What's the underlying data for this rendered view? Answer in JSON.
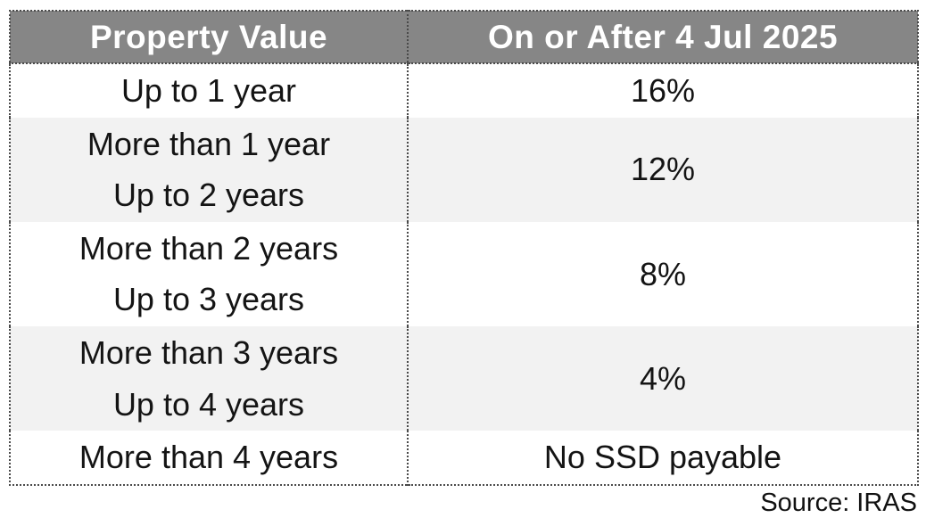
{
  "chart_data": {
    "type": "table",
    "columns": [
      "Property Value",
      "On or After 4 Jul 2025"
    ],
    "rows": [
      {
        "period": "Up to 1 year",
        "rate": "16%"
      },
      {
        "period": "More than 1 year\nUp to 2 years",
        "rate": "12%"
      },
      {
        "period": "More than 2 years\nUp to 3 years",
        "rate": "8%"
      },
      {
        "period": "More than 3 years\nUp to 4 years",
        "rate": "4%"
      },
      {
        "period": "More than 4 years",
        "rate": "No SSD payable"
      }
    ],
    "source_note": "Source: IRAS",
    "legend_position": "none",
    "grid": "off"
  },
  "colors": {
    "header_bg": "#868686",
    "header_text": "#ffffff",
    "row_bg": "#ffffff",
    "row_alt_bg": "#f2f2f2",
    "body_text": "#141414",
    "border": "#4a4a4a"
  }
}
